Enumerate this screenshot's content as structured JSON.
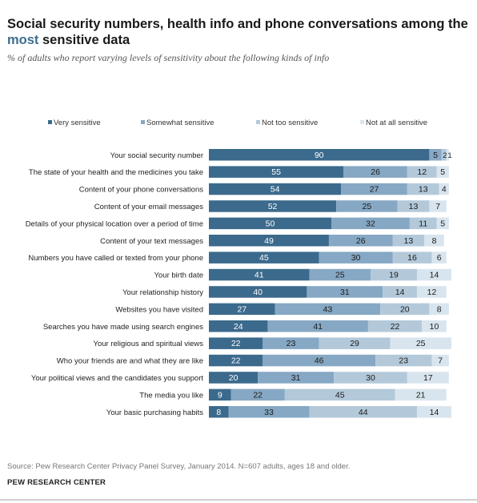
{
  "header": {
    "title_part1": "Social security numbers, health info and phone conversations among the",
    "title_highlight": "most",
    "title_part2": " sensitive data",
    "subtitle": "% of adults who report varying levels of sensitivity about the following kinds of info"
  },
  "footer": {
    "source": "Source: Pew Research Center Privacy Panel Survey, January 2014. N=607 adults, ages 18 and older.",
    "org": "PEW RESEARCH CENTER"
  },
  "colors": {
    "very": "#3b6a8c",
    "somewhat": "#86a8c4",
    "not_too": "#b3c9da",
    "not_at_all": "#d9e5ee"
  },
  "chart_data": {
    "type": "bar",
    "orientation": "horizontal",
    "stacked": true,
    "legend_position": "top",
    "xlim": [
      0,
      100
    ],
    "categories": [
      "Your social security number",
      "The state of your health and the medicines you take",
      "Content of your phone conversations",
      "Content of your email messages",
      "Details of your physical location over a period of time",
      "Content of your text messages",
      "Numbers you have called or texted from your phone",
      "Your birth date",
      "Your relationship history",
      "Websites you have visited",
      "Searches you have made using search engines",
      "Your religious and spiritual views",
      "Who your friends are and what they are like",
      "Your political views and the candidates you support",
      "The media you like",
      "Your basic purchasing habits"
    ],
    "series": [
      {
        "name": "Very sensitive",
        "values": [
          90,
          55,
          54,
          52,
          50,
          49,
          45,
          41,
          40,
          27,
          24,
          22,
          22,
          20,
          9,
          8
        ]
      },
      {
        "name": "Somewhat sensitive",
        "values": [
          5,
          26,
          27,
          25,
          32,
          26,
          30,
          25,
          31,
          43,
          41,
          23,
          46,
          31,
          22,
          33
        ]
      },
      {
        "name": "Not too sensitive",
        "values": [
          2,
          12,
          13,
          13,
          11,
          13,
          16,
          19,
          14,
          20,
          22,
          29,
          23,
          30,
          45,
          44
        ]
      },
      {
        "name": "Not at all sensitive",
        "values": [
          1,
          5,
          4,
          7,
          5,
          8,
          6,
          14,
          12,
          8,
          10,
          25,
          7,
          17,
          21,
          14
        ]
      }
    ]
  }
}
